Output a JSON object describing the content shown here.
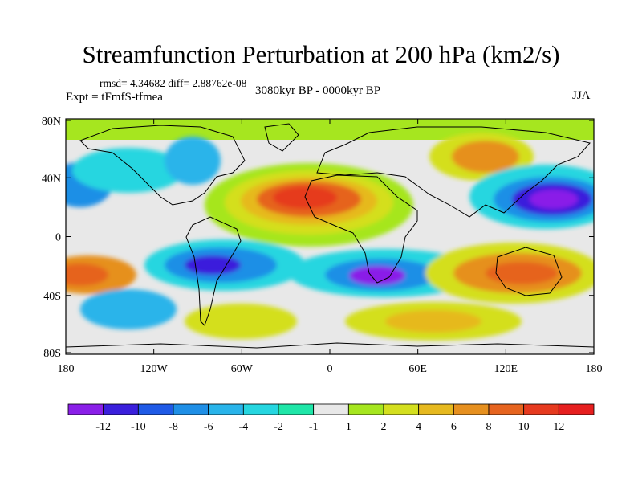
{
  "title": "Streamfunction Perturbation at 200 hPa (km2/s)",
  "stats": "rmsd= 4.34682 diff= 2.88762e-08",
  "experiment": "Expt = tFmfS-tfmea",
  "period": "3080kyr BP - 0000kyr BP",
  "season": "JJA",
  "axes": {
    "lat_labels": [
      "80N",
      "40N",
      "0",
      "40S",
      "80S"
    ],
    "lon_labels": [
      "180",
      "120W",
      "60W",
      "0",
      "60E",
      "120E",
      "180"
    ]
  },
  "colorbar": {
    "labels": [
      "-12",
      "-10",
      "-8",
      "-6",
      "-4",
      "-2",
      "-1",
      "1",
      "2",
      "4",
      "6",
      "8",
      "10",
      "12"
    ],
    "colors": [
      "#8a1fe8",
      "#3a1fdc",
      "#1f5ae6",
      "#1f8fe6",
      "#29b4ea",
      "#26d6e0",
      "#1fe6a8",
      "#e8e8e8",
      "#a6e61f",
      "#d4df1f",
      "#e6b91f",
      "#e6901f",
      "#e6641f",
      "#e63a1f",
      "#e61f1f"
    ]
  },
  "regions": {
    "positive": [
      "North Atlantic / North Africa / Arabia high",
      "East Asia high",
      "South Indian Ocean / Australia high",
      "South Pacific high"
    ],
    "negative": [
      "Northwest Pacific low",
      "South America / South Atlantic low",
      "Southern Africa low",
      "North Pacific low"
    ]
  }
}
